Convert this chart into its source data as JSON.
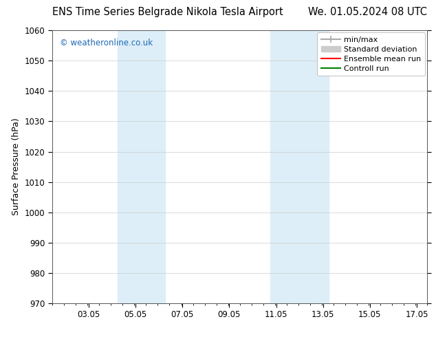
{
  "title_left": "ENS Time Series Belgrade Nikola Tesla Airport",
  "title_right": "We. 01.05.2024 08 UTC",
  "ylabel": "Surface Pressure (hPa)",
  "ylim": [
    970,
    1060
  ],
  "yticks": [
    970,
    980,
    990,
    1000,
    1010,
    1020,
    1030,
    1040,
    1050,
    1060
  ],
  "xlim": [
    1.5,
    17.5
  ],
  "xticks": [
    3.05,
    5.05,
    7.05,
    9.05,
    11.05,
    13.05,
    15.05,
    17.05
  ],
  "xticklabels": [
    "03.05",
    "05.05",
    "07.05",
    "09.05",
    "11.05",
    "13.05",
    "15.05",
    "17.05"
  ],
  "shaded_regions": [
    {
      "xmin": 4.3,
      "xmax": 6.3,
      "color": "#ddeef8"
    },
    {
      "xmin": 10.8,
      "xmax": 13.3,
      "color": "#ddeef8"
    }
  ],
  "watermark": "© weatheronline.co.uk",
  "watermark_color": "#1e6ab4",
  "legend_entries": [
    {
      "label": "min/max",
      "color": "#aaaaaa",
      "lw": 1.5,
      "ls": "solid"
    },
    {
      "label": "Standard deviation",
      "color": "#cccccc",
      "lw": 8,
      "ls": "solid"
    },
    {
      "label": "Ensemble mean run",
      "color": "red",
      "lw": 1.5,
      "ls": "solid"
    },
    {
      "label": "Controll run",
      "color": "green",
      "lw": 1.5,
      "ls": "solid"
    }
  ],
  "bg_color": "#ffffff",
  "grid_color": "#cccccc",
  "title_fontsize": 10.5,
  "axis_label_fontsize": 9,
  "tick_fontsize": 8.5,
  "watermark_fontsize": 8.5,
  "legend_fontsize": 8
}
